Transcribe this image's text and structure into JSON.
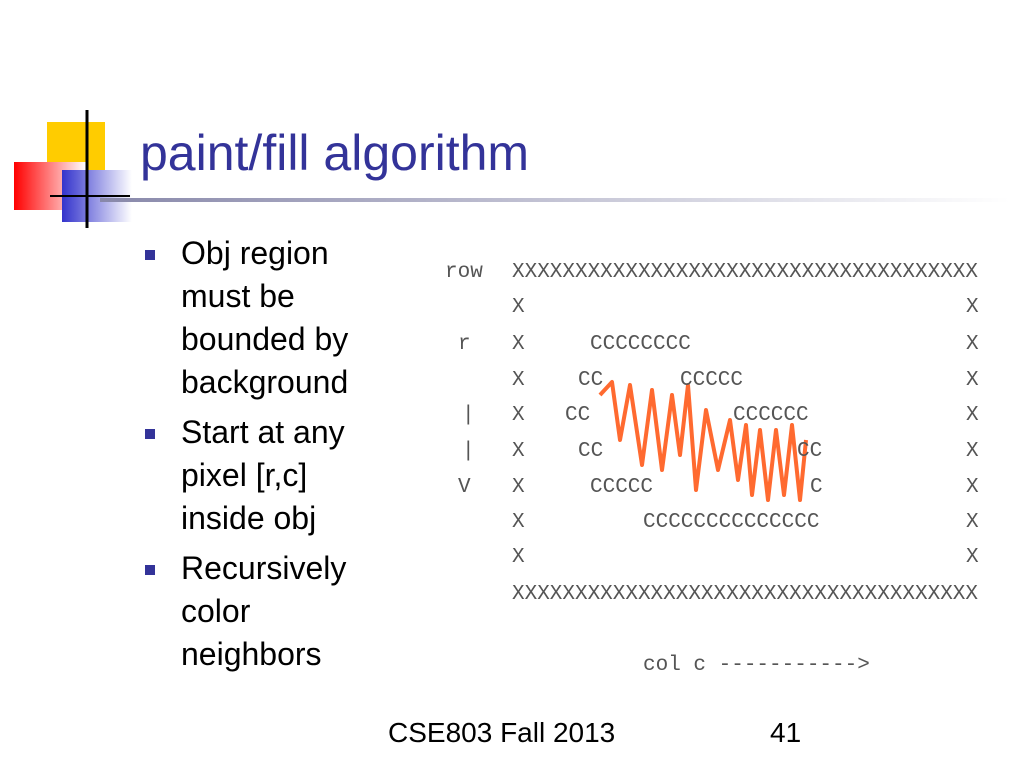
{
  "title": "paint/fill algorithm",
  "bullets": [
    "Obj region must be bounded by background",
    "Start at any pixel [r,c] inside obj",
    "Recursively color neighbors"
  ],
  "figure": {
    "rows": [
      [
        "row",
        "XXXXXXXXXXXXXXXXXXXXXXXXXXXXXXXXXXXXX"
      ],
      [
        "X",
        "X"
      ],
      [
        "r",
        "X",
        "CCCCCCCC",
        "X"
      ],
      [
        "X",
        "CC",
        "CCCCC",
        "X"
      ],
      [
        "|",
        "X",
        "CC",
        "CCCCCC",
        "X"
      ],
      [
        "|",
        "X",
        "CC",
        "CC",
        "X"
      ],
      [
        "V",
        "X",
        "CCCCC",
        "C",
        "X"
      ],
      [
        "X",
        "CCCCCCCCCCCCCC",
        "X"
      ],
      [
        "X",
        "X"
      ],
      [
        "XXXXXXXXXXXXXXXXXXXXXXXXXXXXXXXXXXXXX"
      ]
    ],
    "caption": "col  c  ----------->"
  },
  "footer": "CSE803 Fall 2013",
  "slide_number": "41"
}
